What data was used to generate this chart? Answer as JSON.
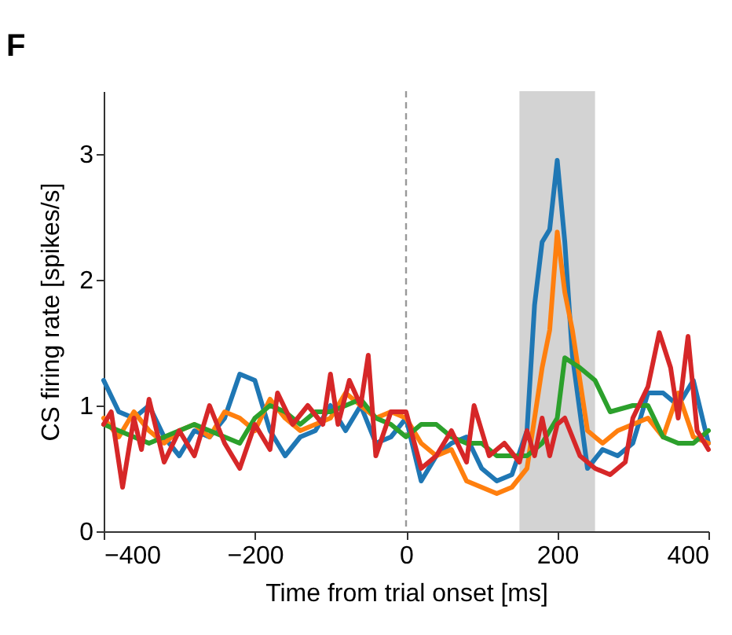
{
  "chart_data": {
    "type": "line",
    "title": "F",
    "xlabel": "Time from trial onset [ms]",
    "ylabel": "CS firing rate [spikes/s]",
    "xlim": [
      -400,
      400
    ],
    "xticks": [
      -400,
      -200,
      0,
      200,
      400
    ],
    "ylim": [
      0,
      3.5
    ],
    "yticks": [
      0,
      1,
      2,
      3
    ],
    "grid": false,
    "legend": false,
    "line_style": "solid",
    "marker": "none",
    "ref_lines": [
      {
        "axis": "x",
        "value": 0,
        "color": "#999999",
        "line_style": "dashed"
      }
    ],
    "bands": [
      {
        "axis": "x",
        "from": 150,
        "to": 250,
        "color": "#d3d3d3"
      }
    ],
    "series": [
      {
        "color": "#1f77b4",
        "x": [
          -400,
          -380,
          -360,
          -340,
          -320,
          -300,
          -280,
          -260,
          -240,
          -220,
          -200,
          -180,
          -160,
          -140,
          -120,
          -100,
          -80,
          -60,
          -40,
          -20,
          0,
          20,
          40,
          60,
          80,
          100,
          120,
          140,
          160,
          170,
          180,
          190,
          200,
          210,
          220,
          240,
          260,
          280,
          300,
          320,
          340,
          360,
          380,
          400
        ],
        "values": [
          1.2,
          0.95,
          0.9,
          1.0,
          0.75,
          0.6,
          0.8,
          0.75,
          0.9,
          1.25,
          1.2,
          0.8,
          0.6,
          0.75,
          0.8,
          1.0,
          0.8,
          1.0,
          0.7,
          0.75,
          0.9,
          0.4,
          0.6,
          0.7,
          0.75,
          0.5,
          0.4,
          0.45,
          0.8,
          1.8,
          2.3,
          2.4,
          2.95,
          2.3,
          1.4,
          0.5,
          0.65,
          0.6,
          0.7,
          1.1,
          1.1,
          1.0,
          1.2,
          0.7
        ]
      },
      {
        "color": "#ff7f0e",
        "x": [
          -400,
          -380,
          -360,
          -340,
          -320,
          -300,
          -280,
          -260,
          -240,
          -220,
          -200,
          -180,
          -160,
          -140,
          -120,
          -100,
          -80,
          -60,
          -40,
          -20,
          0,
          20,
          40,
          60,
          80,
          100,
          120,
          140,
          160,
          180,
          190,
          200,
          210,
          220,
          240,
          260,
          280,
          300,
          320,
          340,
          360,
          380,
          400
        ],
        "values": [
          0.9,
          0.75,
          0.95,
          0.8,
          0.7,
          0.8,
          0.85,
          0.75,
          0.95,
          0.9,
          0.8,
          1.05,
          0.9,
          0.8,
          0.85,
          0.9,
          1.1,
          1.0,
          0.9,
          0.95,
          0.9,
          0.7,
          0.6,
          0.65,
          0.4,
          0.35,
          0.3,
          0.35,
          0.5,
          1.3,
          1.6,
          2.38,
          1.9,
          1.6,
          0.8,
          0.7,
          0.8,
          0.85,
          0.9,
          0.75,
          1.1,
          0.75,
          0.7
        ]
      },
      {
        "color": "#2ca02c",
        "x": [
          -400,
          -380,
          -360,
          -340,
          -320,
          -300,
          -280,
          -260,
          -240,
          -220,
          -200,
          -180,
          -160,
          -140,
          -120,
          -100,
          -80,
          -60,
          -40,
          -20,
          0,
          20,
          40,
          60,
          80,
          100,
          120,
          140,
          160,
          180,
          200,
          210,
          230,
          250,
          270,
          300,
          320,
          340,
          360,
          380,
          400
        ],
        "values": [
          0.85,
          0.8,
          0.75,
          0.7,
          0.75,
          0.8,
          0.85,
          0.8,
          0.75,
          0.7,
          0.9,
          1.0,
          0.95,
          0.85,
          0.95,
          0.95,
          1.0,
          1.05,
          0.9,
          0.85,
          0.75,
          0.85,
          0.85,
          0.75,
          0.7,
          0.7,
          0.6,
          0.6,
          0.6,
          0.7,
          0.9,
          1.38,
          1.3,
          1.2,
          0.95,
          1.0,
          1.0,
          0.75,
          0.7,
          0.7,
          0.8
        ]
      },
      {
        "color": "#d62728",
        "x": [
          -400,
          -390,
          -375,
          -360,
          -350,
          -340,
          -320,
          -300,
          -280,
          -260,
          -240,
          -220,
          -200,
          -180,
          -170,
          -150,
          -130,
          -110,
          -100,
          -90,
          -75,
          -60,
          -50,
          -40,
          -20,
          0,
          20,
          40,
          60,
          80,
          90,
          110,
          130,
          150,
          160,
          170,
          180,
          190,
          200,
          210,
          230,
          250,
          270,
          290,
          300,
          320,
          335,
          350,
          360,
          373,
          385,
          400
        ],
        "values": [
          0.85,
          0.95,
          0.35,
          0.9,
          0.65,
          1.05,
          0.55,
          0.8,
          0.6,
          1.0,
          0.7,
          0.5,
          0.85,
          0.65,
          1.1,
          0.85,
          1.0,
          0.85,
          1.25,
          0.85,
          1.2,
          1.0,
          1.4,
          0.6,
          0.95,
          0.95,
          0.5,
          0.6,
          0.8,
          0.55,
          1.0,
          0.6,
          0.7,
          0.55,
          0.8,
          0.6,
          0.9,
          0.6,
          0.85,
          0.9,
          0.6,
          0.5,
          0.45,
          0.55,
          0.9,
          1.15,
          1.58,
          1.3,
          0.9,
          1.55,
          0.8,
          0.65
        ]
      }
    ]
  }
}
